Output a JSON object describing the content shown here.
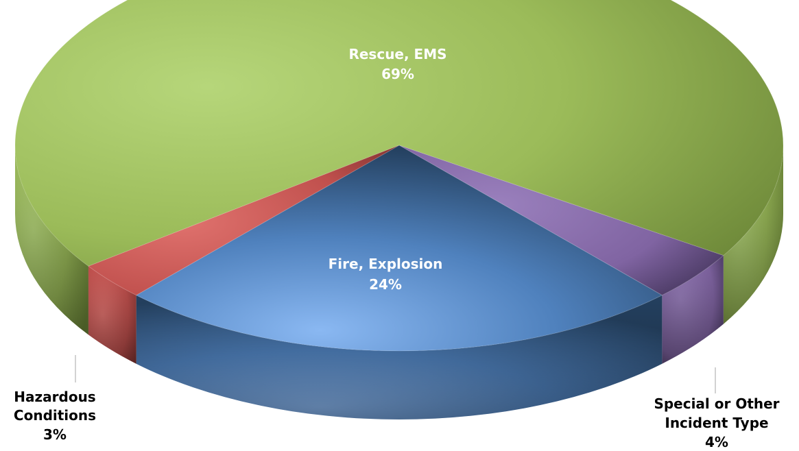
{
  "chart_data": {
    "type": "pie",
    "title": "",
    "legend": "none",
    "categories": [
      "Rescue, EMS",
      "Special or Other Incident Type",
      "Fire, Explosion",
      "Hazardous Conditions"
    ],
    "values": [
      69,
      4,
      24,
      3
    ],
    "percent_labels": [
      "69%",
      "4%",
      "24%",
      "3%"
    ],
    "colors": [
      "#9BBB59",
      "#8064A2",
      "#4F81BD",
      "#C0504D"
    ]
  }
}
